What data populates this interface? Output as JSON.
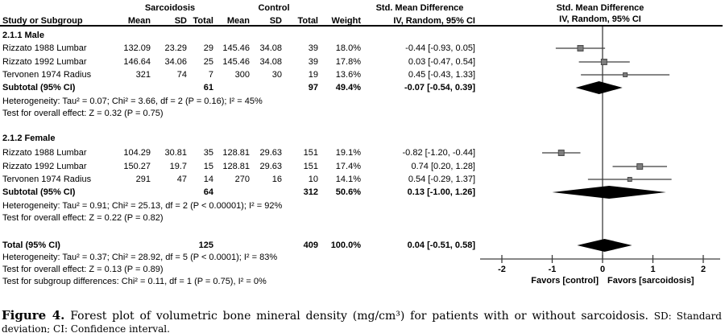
{
  "chart_data": {
    "type": "forest",
    "headers": {
      "group1": "Sarcoidosis",
      "group2": "Control",
      "smd_table": "Std. Mean Difference",
      "smd_plot": "Std. Mean Difference",
      "study": "Study or Subgroup",
      "mean": "Mean",
      "sd": "SD",
      "total": "Total",
      "weight": "Weight",
      "ci_table": "IV, Random, 95% CI",
      "ci_plot": "IV, Random, 95% CI"
    },
    "sections": [
      {
        "title": "2.1.1 Male",
        "studies": [
          {
            "study": "Rizzato 1988 Lumbar",
            "mean1": "132.09",
            "sd1": "23.29",
            "n1": "29",
            "mean2": "145.46",
            "sd2": "34.08",
            "n2": "39",
            "weight": "18.0%",
            "ci": "-0.44 [-0.93, 0.05]",
            "est": -0.44,
            "lo": -0.93,
            "hi": 0.05,
            "w": 18.0
          },
          {
            "study": "Rizzato 1992 Lumbar",
            "mean1": "146.64",
            "sd1": "34.06",
            "n1": "25",
            "mean2": "145.46",
            "sd2": "34.08",
            "n2": "39",
            "weight": "17.8%",
            "ci": "0.03 [-0.47, 0.54]",
            "est": 0.03,
            "lo": -0.47,
            "hi": 0.54,
            "w": 17.8
          },
          {
            "study": "Tervonen 1974 Radius",
            "mean1": "321",
            "sd1": "74",
            "n1": "7",
            "mean2": "300",
            "sd2": "30",
            "n2": "19",
            "weight": "13.6%",
            "ci": "0.45 [-0.43, 1.33]",
            "est": 0.45,
            "lo": -0.43,
            "hi": 1.33,
            "w": 13.6
          }
        ],
        "subtotal": {
          "study": "Subtotal (95% CI)",
          "n1": "61",
          "n2": "97",
          "weight": "49.4%",
          "ci": "-0.07 [-0.54, 0.39]",
          "est": -0.07,
          "lo": -0.54,
          "hi": 0.39
        },
        "heterogeneity": "Heterogeneity: Tau² = 0.07; Chi² = 3.66, df = 2 (P = 0.16); I² = 45%",
        "overall_effect": "Test for overall effect: Z = 0.32 (P = 0.75)"
      },
      {
        "title": "2.1.2 Female",
        "studies": [
          {
            "study": "Rizzato 1988 Lumbar",
            "mean1": "104.29",
            "sd1": "30.81",
            "n1": "35",
            "mean2": "128.81",
            "sd2": "29.63",
            "n2": "151",
            "weight": "19.1%",
            "ci": "-0.82 [-1.20, -0.44]",
            "est": -0.82,
            "lo": -1.2,
            "hi": -0.44,
            "w": 19.1
          },
          {
            "study": "Rizzato 1992 Lumbar",
            "mean1": "150.27",
            "sd1": "19.7",
            "n1": "15",
            "mean2": "128.81",
            "sd2": "29.63",
            "n2": "151",
            "weight": "17.4%",
            "ci": "0.74 [0.20, 1.28]",
            "est": 0.74,
            "lo": 0.2,
            "hi": 1.28,
            "w": 17.4
          },
          {
            "study": "Tervonen 1974 Radius",
            "mean1": "291",
            "sd1": "47",
            "n1": "14",
            "mean2": "270",
            "sd2": "16",
            "n2": "10",
            "weight": "14.1%",
            "ci": "0.54 [-0.29, 1.37]",
            "est": 0.54,
            "lo": -0.29,
            "hi": 1.37,
            "w": 14.1
          }
        ],
        "subtotal": {
          "study": "Subtotal (95% CI)",
          "n1": "64",
          "n2": "312",
          "weight": "50.6%",
          "ci": "0.13 [-1.00, 1.26]",
          "est": 0.13,
          "lo": -1.0,
          "hi": 1.26
        },
        "heterogeneity": "Heterogeneity: Tau² = 0.91; Chi² = 25.13, df = 2 (P < 0.00001); I² = 92%",
        "overall_effect": "Test for overall effect: Z = 0.22 (P = 0.82)"
      }
    ],
    "total": {
      "study": "Total (95% CI)",
      "n1": "125",
      "n2": "409",
      "weight": "100.0%",
      "ci": "0.04 [-0.51, 0.58]",
      "est": 0.04,
      "lo": -0.51,
      "hi": 0.58
    },
    "total_heterogeneity": "Heterogeneity: Tau² = 0.37; Chi² = 28.92, df = 5 (P < 0.0001); I² = 83%",
    "total_overall_effect": "Test for overall effect: Z = 0.13 (P = 0.89)",
    "subgroup_differences": "Test for subgroup differences: Chi² = 0.11, df = 1 (P = 0.75), I² = 0%",
    "axis": {
      "ticks": [
        -2,
        -1,
        0,
        1,
        2
      ],
      "min": -2.4,
      "max": 2.35,
      "favors_left": "Favors [control]",
      "favors_right": "Favors [sarcoidosis]"
    },
    "colors": {
      "square": "#7d7d7d",
      "square_border": "#4a4a4a",
      "ci_line": "#3d3d3d",
      "diamond": "#000000",
      "axis": "#3d3d3d",
      "text": "#000000"
    }
  },
  "caption": {
    "label": "Figure 4.",
    "text": " Forest plot of volumetric bone mineral density (mg/cm³) for patients with or without sarcoidosis. ",
    "abbreviations": "SD: Standard deviation; CI: Confidence interval."
  }
}
